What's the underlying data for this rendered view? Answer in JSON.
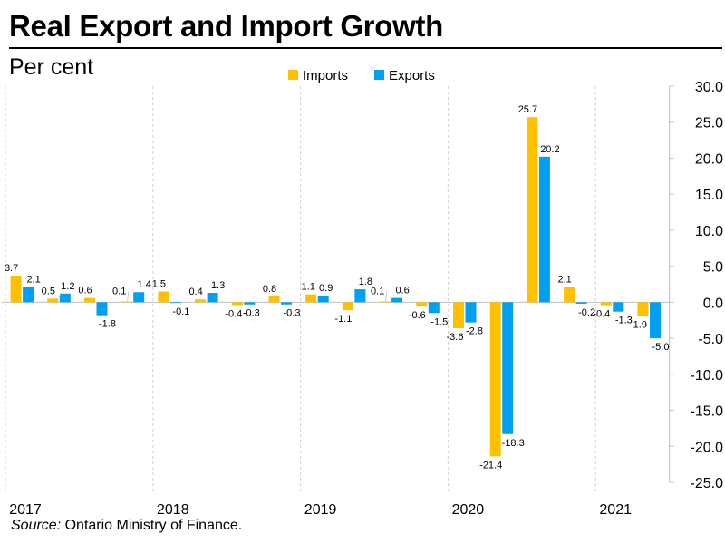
{
  "title": "Real Export and Import Growth",
  "subtitle": "Per cent",
  "source": {
    "label": "Source:",
    "text": "Ontario Ministry of Finance."
  },
  "colors": {
    "imports": "#FFC000",
    "exports": "#00A0F0",
    "axis": "#BFBFBF",
    "gridline": "#D0D0D0",
    "label": "#000000"
  },
  "chart_data": {
    "type": "bar",
    "title": "Real Export and Import Growth",
    "ylabel": "Per cent",
    "ylim": [
      -25,
      30
    ],
    "yticks": [
      30,
      25,
      20,
      15,
      10,
      5,
      0,
      -5,
      -10,
      -15,
      -20,
      -25
    ],
    "ytick_labels": [
      "30.0",
      "25.0",
      "20.0",
      "15.0",
      "10.0",
      "5.0",
      "0.0",
      "-5.0",
      "-10.0",
      "-15.0",
      "-20.0",
      "-25.0"
    ],
    "years": [
      "2017",
      "2018",
      "2019",
      "2020",
      "2021"
    ],
    "categories": [
      "2017Q1",
      "2017Q2",
      "2017Q3",
      "2017Q4",
      "2018Q1",
      "2018Q2",
      "2018Q3",
      "2018Q4",
      "2019Q1",
      "2019Q2",
      "2019Q3",
      "2019Q4",
      "2020Q1",
      "2020Q2",
      "2020Q3",
      "2020Q4",
      "2021Q1",
      "2021Q2"
    ],
    "legend": {
      "position": "top",
      "entries": [
        "Imports",
        "Exports"
      ]
    },
    "series": [
      {
        "name": "Imports",
        "values": [
          3.7,
          0.5,
          0.6,
          0.1,
          1.5,
          0.4,
          -0.4,
          0.8,
          1.1,
          -1.1,
          0.1,
          -0.6,
          -3.6,
          -21.4,
          25.7,
          2.1,
          -0.4,
          -1.9
        ],
        "labels": [
          "3.7",
          "0.5",
          "0.6",
          "0.1",
          "1.5",
          "0.4",
          "-0.4",
          "0.8",
          "1.1",
          "-1.1",
          "0.1",
          "-0.6",
          "-3.6",
          "-21.4",
          "25.7",
          "2.1",
          "-0.4",
          "-1.9"
        ]
      },
      {
        "name": "Exports",
        "values": [
          2.1,
          1.2,
          -1.8,
          1.4,
          -0.1,
          1.3,
          -0.3,
          -0.3,
          0.9,
          1.8,
          0.6,
          -1.5,
          -2.8,
          -18.3,
          20.2,
          -0.2,
          -1.3,
          -5.0
        ],
        "labels": [
          "2.1",
          "1.2",
          "-1.8",
          "1.4",
          "-0.1",
          "1.3",
          "-0.3",
          "-0.3",
          "0.9",
          "1.8",
          "0.6",
          "-1.5",
          "-2.8",
          "-18.3",
          "20.2",
          "-0.2",
          "-1.3",
          "-5.0"
        ]
      }
    ]
  }
}
